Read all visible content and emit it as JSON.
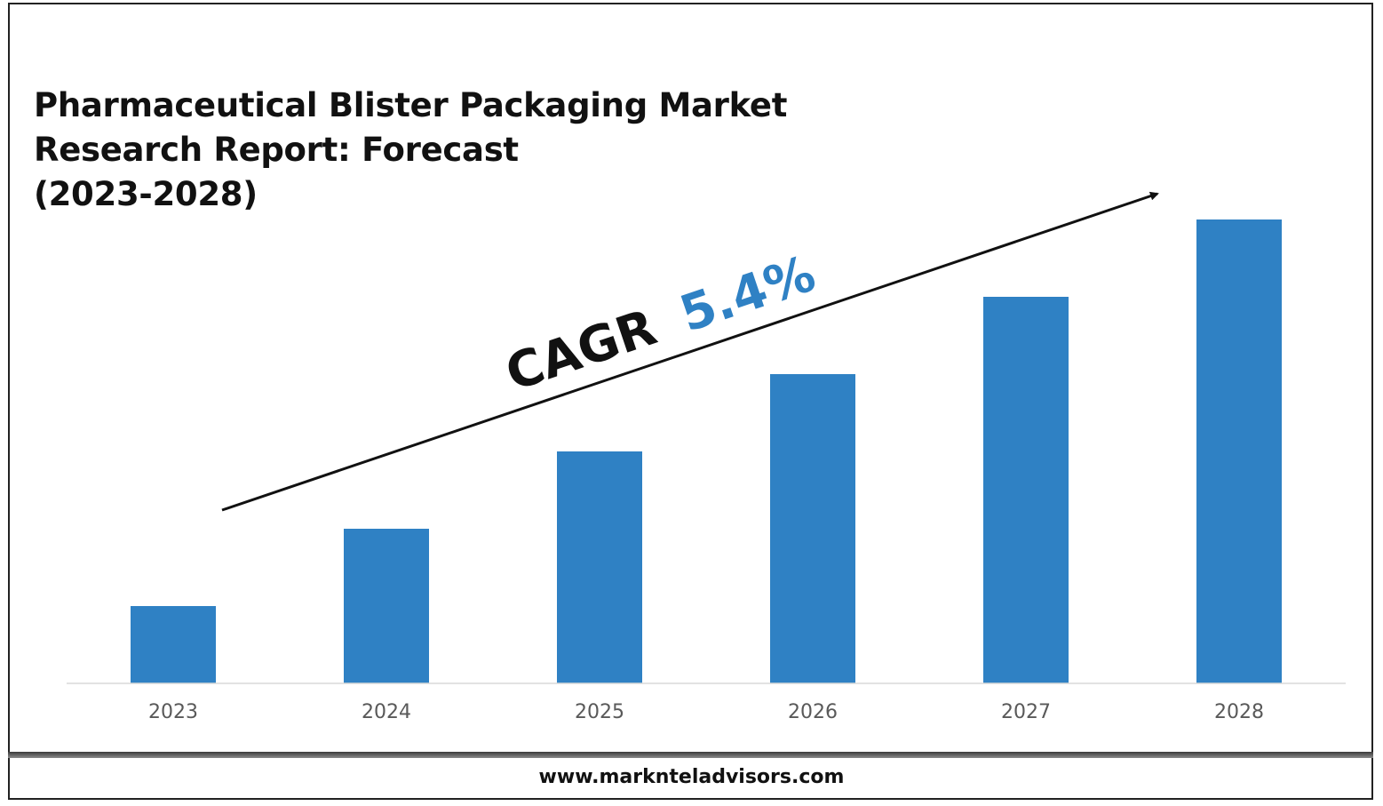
{
  "title_lines": [
    "Pharmaceutical Blister Packaging Market",
    "Research Report: Forecast",
    "(2023-2028)"
  ],
  "cagr": {
    "label": "CAGR",
    "value": "5.4%",
    "label_color": "#111111",
    "value_color": "#2f81c4"
  },
  "footer": {
    "url": "www.marknteladvisors.com"
  },
  "chart_data": {
    "type": "bar",
    "categories": [
      "2023",
      "2024",
      "2025",
      "2026",
      "2027",
      "2028"
    ],
    "values": [
      1,
      2,
      3,
      4,
      5,
      6
    ],
    "title": "",
    "xlabel": "",
    "ylabel": "",
    "ylim": [
      0,
      6
    ],
    "grid": false,
    "legend": "none",
    "bar_color": "#2f81c4",
    "axis_color": "#d9d9d9",
    "tick_label_color": "#595959"
  }
}
